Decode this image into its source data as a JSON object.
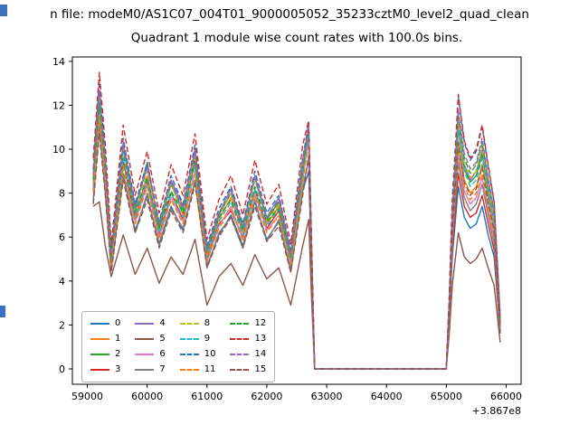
{
  "header": {
    "file_line": "n file: modeM0/AS1C07_004T01_9000005052_35233cztM0_level2_quad_clean"
  },
  "chart_data": {
    "type": "line",
    "title": "Quadrant 1 module wise count rates with 100.0s bins.",
    "xlabel": "",
    "ylabel": "",
    "x_offset_text": "+3.867e8",
    "xlim": [
      58750,
      66250
    ],
    "ylim": [
      -0.7,
      14.2
    ],
    "xticks": [
      59000,
      60000,
      61000,
      62000,
      63000,
      64000,
      65000,
      66000
    ],
    "yticks": [
      0,
      2,
      4,
      6,
      8,
      10,
      12,
      14
    ],
    "grid": false,
    "legend_position": "lower left",
    "legend_columns": 4,
    "x": [
      59100,
      59200,
      59300,
      59400,
      59600,
      59800,
      60000,
      60200,
      60400,
      60600,
      60800,
      61000,
      61200,
      61400,
      61600,
      61800,
      62000,
      62200,
      62400,
      62600,
      62700,
      62750,
      62800,
      63000,
      63500,
      64000,
      64500,
      65000,
      65050,
      65100,
      65200,
      65300,
      65400,
      65500,
      65600,
      65700,
      65800,
      65900
    ],
    "series": [
      {
        "name": "0",
        "color": "#1f77b4",
        "dash": false,
        "values": [
          7.7,
          11.0,
          8.1,
          4.5,
          8.8,
          6.3,
          7.9,
          5.7,
          7.4,
          6.3,
          8.6,
          4.7,
          6.1,
          7.0,
          5.6,
          7.6,
          5.9,
          6.7,
          4.5,
          8.1,
          9.0,
          4.5,
          0,
          0,
          0,
          0,
          0,
          0,
          2.2,
          5.1,
          8.3,
          6.9,
          6.4,
          6.6,
          7.4,
          6.1,
          5.1,
          1.6
        ]
      },
      {
        "name": "1",
        "color": "#ff7f0e",
        "dash": false,
        "values": [
          8.5,
          12.2,
          9.0,
          5.0,
          9.5,
          7.0,
          8.8,
          6.3,
          8.5,
          7.0,
          9.5,
          5.2,
          6.8,
          7.8,
          6.2,
          8.1,
          6.6,
          7.4,
          5.0,
          9.0,
          11.0,
          5.0,
          0,
          0,
          0,
          0,
          0,
          0,
          2.7,
          6.3,
          10.4,
          8.6,
          8.0,
          8.3,
          9.3,
          7.7,
          6.3,
          2.0
        ]
      },
      {
        "name": "2",
        "color": "#2ca02c",
        "dash": false,
        "values": [
          8.8,
          12.6,
          9.3,
          5.2,
          10.1,
          7.2,
          9.4,
          6.5,
          8.4,
          7.2,
          9.8,
          5.4,
          7.0,
          8.0,
          6.4,
          8.7,
          6.8,
          7.6,
          5.2,
          9.3,
          10.8,
          5.2,
          0,
          0,
          0,
          0,
          0,
          0,
          2.9,
          6.7,
          11.0,
          9.1,
          8.5,
          8.8,
          9.8,
          8.1,
          6.7,
          2.1
        ]
      },
      {
        "name": "3",
        "color": "#d62728",
        "dash": false,
        "values": [
          8.2,
          11.8,
          8.7,
          4.9,
          9.5,
          6.8,
          8.5,
          6.1,
          8.0,
          6.8,
          9.6,
          5.0,
          6.6,
          7.2,
          6.0,
          8.1,
          6.4,
          7.2,
          4.9,
          8.7,
          10.7,
          4.9,
          0,
          0,
          0,
          0,
          0,
          0,
          2.3,
          5.4,
          8.9,
          7.4,
          6.9,
          7.1,
          7.9,
          6.6,
          5.4,
          1.7
        ]
      },
      {
        "name": "4",
        "color": "#9467bd",
        "dash": false,
        "values": [
          8.9,
          12.4,
          9.5,
          5.3,
          10.3,
          7.4,
          9.2,
          6.6,
          8.6,
          7.4,
          10.0,
          5.5,
          7.1,
          8.2,
          6.5,
          8.8,
          6.9,
          7.8,
          5.3,
          9.5,
          11.0,
          5.3,
          0,
          0,
          0,
          0,
          0,
          0,
          2.9,
          6.8,
          11.2,
          9.3,
          8.6,
          9.0,
          10.0,
          8.3,
          6.8,
          2.1
        ]
      },
      {
        "name": "5",
        "color": "#8c564b",
        "dash": false,
        "values": [
          7.4,
          7.6,
          5.6,
          4.2,
          6.1,
          4.3,
          5.5,
          3.9,
          5.1,
          4.3,
          5.9,
          2.9,
          4.2,
          4.8,
          3.8,
          5.2,
          4.1,
          4.6,
          2.9,
          5.6,
          6.8,
          3.1,
          0,
          0,
          0,
          0,
          0,
          0,
          1.6,
          3.8,
          6.2,
          5.1,
          4.8,
          5.0,
          5.5,
          4.6,
          3.8,
          1.2
        ]
      },
      {
        "name": "6",
        "color": "#e377c2",
        "dash": false,
        "values": [
          8.1,
          11.6,
          8.6,
          4.8,
          8.9,
          6.7,
          8.4,
          6.0,
          7.8,
          6.7,
          9.0,
          4.9,
          6.5,
          7.4,
          5.9,
          8.0,
          6.3,
          7.0,
          4.8,
          8.6,
          10.5,
          4.8,
          0,
          0,
          0,
          0,
          0,
          0,
          2.5,
          6.0,
          9.8,
          8.1,
          7.5,
          7.8,
          8.7,
          7.3,
          6.0,
          1.9
        ]
      },
      {
        "name": "7",
        "color": "#7f7f7f",
        "dash": false,
        "values": [
          7.6,
          11.2,
          8.0,
          4.6,
          8.9,
          6.2,
          8.0,
          5.6,
          7.3,
          6.4,
          8.5,
          4.6,
          6.2,
          6.9,
          5.5,
          7.7,
          5.8,
          6.8,
          4.4,
          8.2,
          9.6,
          4.4,
          0,
          0,
          0,
          0,
          0,
          0,
          2.4,
          5.7,
          9.4,
          7.8,
          7.2,
          7.5,
          8.4,
          7.0,
          5.7,
          1.8
        ]
      },
      {
        "name": "8",
        "color": "#bcbd22",
        "dash": true,
        "values": [
          8.7,
          12.4,
          9.2,
          5.1,
          10.0,
          7.1,
          9.0,
          6.7,
          8.4,
          7.1,
          9.7,
          5.3,
          6.9,
          8.0,
          6.3,
          8.6,
          6.7,
          7.5,
          5.1,
          9.2,
          10.9,
          5.1,
          0,
          0,
          0,
          0,
          0,
          0,
          2.9,
          6.9,
          11.3,
          9.4,
          8.7,
          9.0,
          10.1,
          8.4,
          6.9,
          2.1
        ]
      },
      {
        "name": "9",
        "color": "#17becf",
        "dash": true,
        "values": [
          8.3,
          12.0,
          8.8,
          4.9,
          9.6,
          6.9,
          8.6,
          6.2,
          8.0,
          6.9,
          9.3,
          5.1,
          6.7,
          7.6,
          6.1,
          8.2,
          6.5,
          7.3,
          4.9,
          8.8,
          10.8,
          4.9,
          0,
          0,
          0,
          0,
          0,
          0,
          2.8,
          6.6,
          10.8,
          9.0,
          8.3,
          8.6,
          9.6,
          8.0,
          6.6,
          2.1
        ]
      },
      {
        "name": "10",
        "color": "#1f77b4",
        "dash": true,
        "values": [
          9.1,
          13.1,
          9.6,
          5.4,
          10.5,
          7.5,
          9.4,
          6.7,
          8.8,
          7.5,
          10.2,
          5.6,
          7.3,
          8.3,
          6.6,
          9.0,
          7.1,
          7.9,
          5.4,
          9.6,
          11.2,
          5.4,
          0,
          0,
          0,
          0,
          0,
          0,
          3.2,
          7.6,
          12.4,
          10.3,
          9.5,
          9.9,
          11.0,
          9.2,
          7.6,
          2.4
        ]
      },
      {
        "name": "11",
        "color": "#ff7f0e",
        "dash": true,
        "values": [
          8.0,
          11.5,
          8.5,
          4.7,
          9.2,
          6.6,
          8.3,
          5.9,
          7.7,
          6.6,
          8.9,
          4.9,
          6.4,
          7.3,
          5.8,
          7.9,
          6.2,
          7.0,
          4.7,
          8.5,
          10.3,
          4.7,
          0,
          0,
          0,
          0,
          0,
          0,
          2.6,
          6.1,
          10.0,
          8.3,
          7.7,
          8.0,
          8.9,
          7.4,
          6.1,
          1.9
        ]
      },
      {
        "name": "12",
        "color": "#2ca02c",
        "dash": true,
        "values": [
          8.6,
          12.1,
          9.1,
          5.1,
          9.9,
          7.1,
          8.7,
          6.4,
          8.1,
          7.1,
          9.4,
          5.3,
          6.9,
          7.7,
          6.3,
          8.3,
          6.7,
          7.3,
          5.1,
          9.1,
          10.9,
          5.1,
          0,
          0,
          0,
          0,
          0,
          0,
          3.0,
          7.1,
          11.6,
          9.6,
          8.9,
          9.3,
          10.3,
          8.6,
          7.1,
          2.2
        ]
      },
      {
        "name": "13",
        "color": "#d62728",
        "dash": true,
        "values": [
          9.6,
          13.5,
          10.2,
          5.7,
          11.1,
          7.9,
          9.9,
          7.1,
          9.3,
          7.9,
          10.7,
          5.9,
          7.7,
          8.8,
          7.0,
          9.5,
          7.5,
          8.4,
          5.7,
          10.2,
          11.3,
          5.7,
          0,
          0,
          0,
          0,
          0,
          0,
          3.3,
          7.6,
          12.5,
          10.4,
          9.6,
          10.0,
          11.1,
          9.3,
          7.6,
          2.4
        ]
      },
      {
        "name": "14",
        "color": "#9467bd",
        "dash": true,
        "values": [
          8.8,
          12.7,
          9.4,
          5.2,
          10.2,
          7.3,
          9.2,
          6.6,
          8.5,
          7.3,
          9.9,
          5.4,
          7.1,
          8.1,
          6.4,
          8.7,
          6.9,
          7.7,
          5.2,
          9.4,
          11.1,
          5.2,
          0,
          0,
          0,
          0,
          0,
          0,
          3.1,
          7.2,
          11.8,
          9.8,
          9.1,
          9.4,
          10.5,
          8.7,
          7.2,
          2.2
        ]
      },
      {
        "name": "15",
        "color": "#8c564b",
        "dash": true,
        "values": [
          7.5,
          10.7,
          7.9,
          4.4,
          8.6,
          6.2,
          7.7,
          5.5,
          7.2,
          6.2,
          8.4,
          4.6,
          6.0,
          6.9,
          5.5,
          7.4,
          5.8,
          6.5,
          4.4,
          7.9,
          9.7,
          4.4,
          0,
          0,
          0,
          0,
          0,
          0,
          2.7,
          6.3,
          10.3,
          8.5,
          7.9,
          8.2,
          9.2,
          7.6,
          6.3,
          2.0
        ]
      }
    ]
  }
}
